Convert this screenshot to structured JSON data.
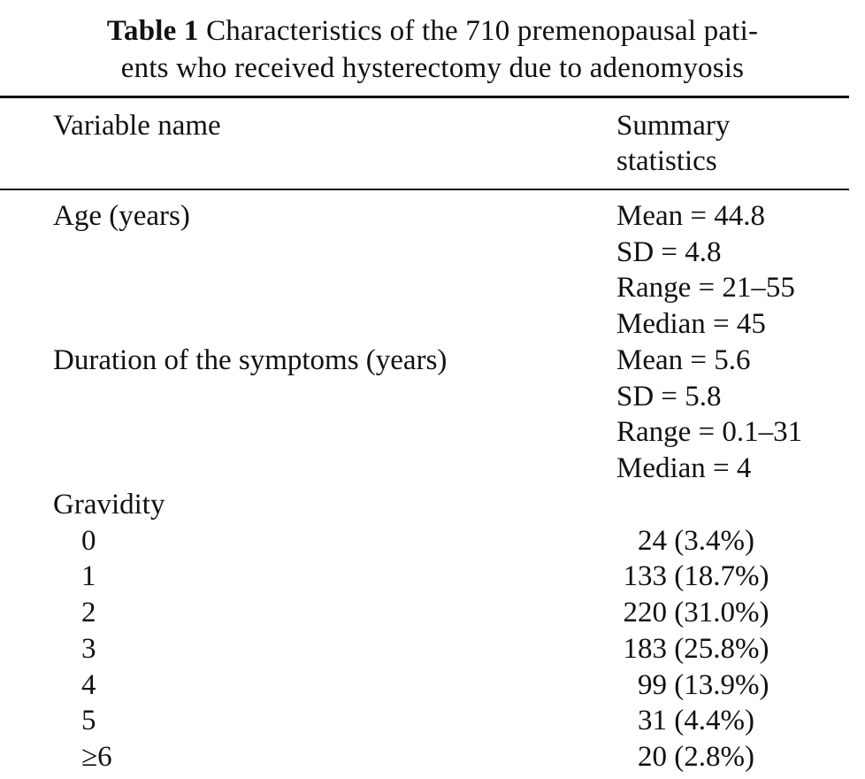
{
  "table": {
    "caption_label": "Table 1",
    "caption_line1": "Characteristics of the 710 premenopausal pati-",
    "caption_line2": "ents who received hysterectomy due to adenomyosis",
    "headers": {
      "variable": "Variable name",
      "summary_line1": "Summary",
      "summary_line2": "statistics"
    },
    "age": {
      "label": "Age (years)",
      "stats": [
        "Mean = 44.8",
        "SD = 4.8",
        "Range = 21–55",
        "Median = 45"
      ]
    },
    "duration": {
      "label": "Duration of the symptoms (years)",
      "stats": [
        "Mean = 5.6",
        "SD = 5.8",
        "Range = 0.1–31",
        "Median = 4"
      ]
    },
    "gravidity": {
      "label": "Gravidity",
      "rows": [
        {
          "level": "0",
          "count": "24",
          "pct": "(3.4%)"
        },
        {
          "level": "1",
          "count": "133",
          "pct": "(18.7%)"
        },
        {
          "level": "2",
          "count": "220",
          "pct": "(31.0%)"
        },
        {
          "level": "3",
          "count": "183",
          "pct": "(25.8%)"
        },
        {
          "level": "4",
          "count": "99",
          "pct": "(13.9%)"
        },
        {
          "level": "5",
          "count": "31",
          "pct": "(4.4%)"
        },
        {
          "level": "≥6",
          "count": "20",
          "pct": "(2.8%)"
        }
      ]
    }
  }
}
